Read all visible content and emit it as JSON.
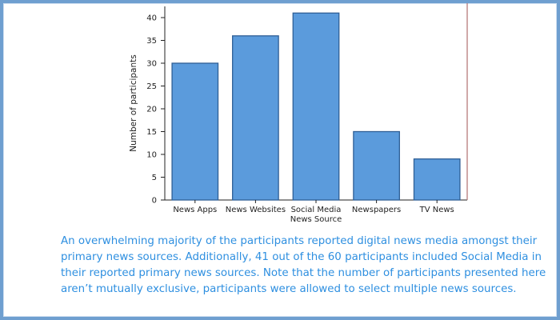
{
  "caption": "An overwhelming majority of the participants reported digital news media amongst their primary news sources. Additionally, 41 out of the 60 participants included Social Media in their reported primary news sources. Note that the number of participants  presented here aren’t mutually exclusive, participants were allowed to select multiple news sources.",
  "colors": {
    "bar": "#5b9bdc",
    "bar_edge": "#2f5f96",
    "axis": "#222222",
    "frame_line": "#b07070",
    "caption": "#2e8fe0"
  },
  "chart_data": {
    "type": "bar",
    "categories": [
      [
        "News Apps"
      ],
      [
        "News Websites"
      ],
      [
        "Social Media",
        "News Source"
      ],
      [
        "Newspapers"
      ],
      [
        "TV News"
      ]
    ],
    "values": [
      30,
      36,
      41,
      15,
      9
    ],
    "title": "",
    "xlabel": "",
    "ylabel": "Number of participants",
    "ylim": [
      0,
      42
    ],
    "yticks": [
      0,
      5,
      10,
      15,
      20,
      25,
      30,
      35,
      40
    ],
    "grid": false
  }
}
